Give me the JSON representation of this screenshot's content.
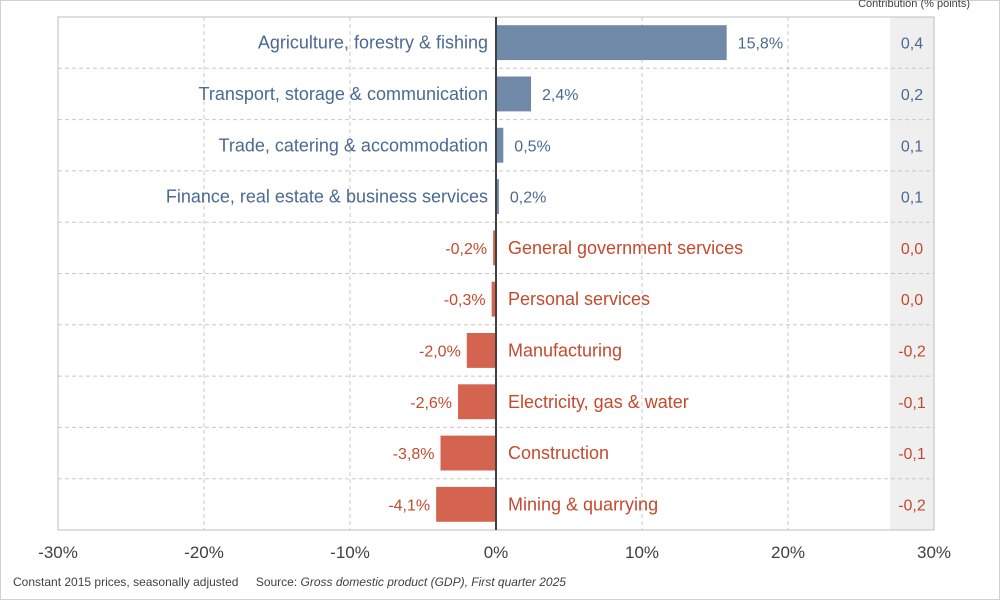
{
  "contribution_header": "Contribution (% points)",
  "footer": {
    "note": "Constant 2015 prices, seasonally adjusted",
    "source_label": "Source: ",
    "source_title": "Gross domestic product (GDP), First quarter 2025"
  },
  "colors": {
    "positive": "#7189a8",
    "negative": "#d4644f",
    "positive_text": "#4a6a92",
    "negative_text": "#c44a2e"
  },
  "chart_data": {
    "type": "bar",
    "orientation": "horizontal",
    "xlim": [
      -30,
      30
    ],
    "x_ticks": [
      "-30%",
      "-20%",
      "-10%",
      "0%",
      "10%",
      "20%",
      "30%"
    ],
    "grid": true,
    "categories": [
      "Agriculture, forestry & fishing",
      "Transport, storage & communication",
      "Trade, catering & accommodation",
      "Finance, real estate & business services",
      "General government services",
      "Personal services",
      "Manufacturing",
      "Electricity, gas & water",
      "Construction",
      "Mining & quarrying"
    ],
    "values": [
      15.8,
      2.4,
      0.5,
      0.2,
      -0.2,
      -0.3,
      -2.0,
      -2.6,
      -3.8,
      -4.1
    ],
    "value_labels": [
      "15,8%",
      "2,4%",
      "0,5%",
      "0,2%",
      "-0,2%",
      "-0,3%",
      "-2,0%",
      "-2,6%",
      "-3,8%",
      "-4,1%"
    ],
    "contributions": [
      "0,4",
      "0,2",
      "0,1",
      "0,1",
      "0,0",
      "0,0",
      "-0,2",
      "-0,1",
      "-0,1",
      "-0,2"
    ]
  }
}
